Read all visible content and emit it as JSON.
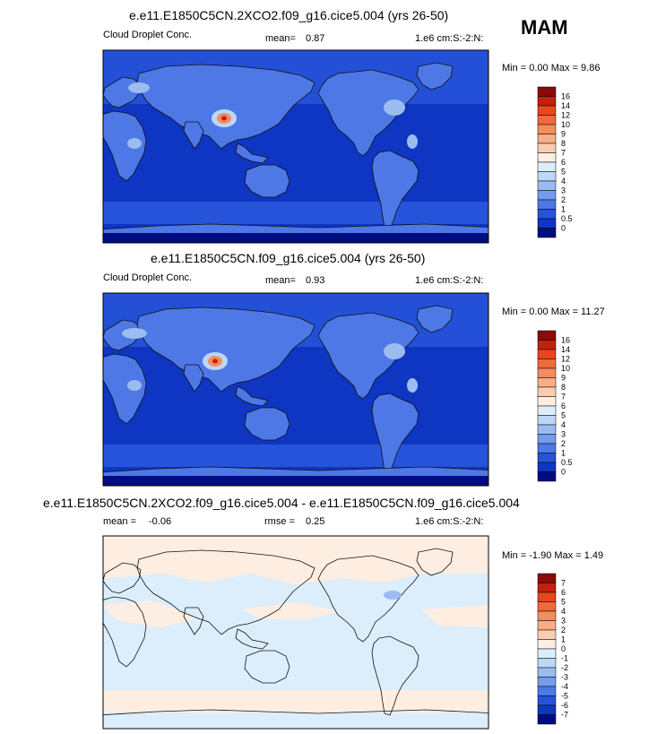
{
  "season": "MAM",
  "units": "1.e6 cm:S:-2:N:",
  "panels": [
    {
      "title": "e.e11.E1850C5CN.2XCO2.f09_g16.cice5.004 (yrs 26-50)",
      "variable": "Cloud Droplet Conc.",
      "stat_label": "mean=",
      "stat_value": "0.87",
      "minmax": "Min =   0.00 Max =   9.86",
      "colorbar": {
        "labels": [
          "16",
          "14",
          "12",
          "10",
          "9",
          "8",
          "7",
          "6",
          "5",
          "4",
          "3",
          "2",
          "1",
          "0.5",
          "0"
        ],
        "colors": [
          "#8c0a0a",
          "#c3200f",
          "#e8461d",
          "#f06a3c",
          "#f48c5e",
          "#f8ad87",
          "#fbcdb0",
          "#feeee2",
          "#dceefc",
          "#bcd7f7",
          "#9bbcf1",
          "#759bec",
          "#4d78e6",
          "#2653d9",
          "#0e36c2",
          "#000c82"
        ]
      }
    },
    {
      "title": "e.e11.E1850C5CN.f09_g16.cice5.004 (yrs 26-50)",
      "variable": "Cloud Droplet Conc.",
      "stat_label": "mean=",
      "stat_value": "0.93",
      "minmax": "Min =   0.00 Max =  11.27",
      "colorbar": {
        "labels": [
          "16",
          "14",
          "12",
          "10",
          "9",
          "8",
          "7",
          "6",
          "5",
          "4",
          "3",
          "2",
          "1",
          "0.5",
          "0"
        ],
        "colors": [
          "#8c0a0a",
          "#c3200f",
          "#e8461d",
          "#f06a3c",
          "#f48c5e",
          "#f8ad87",
          "#fbcdb0",
          "#feeee2",
          "#dceefc",
          "#bcd7f7",
          "#9bbcf1",
          "#759bec",
          "#4d78e6",
          "#2653d9",
          "#0e36c2",
          "#000c82"
        ]
      }
    },
    {
      "title": "e.e11.E1850C5CN.2XCO2.f09_g16.cice5.004 - e.e11.E1850C5CN.f09_g16.cice5.004",
      "stat_label": "mean =",
      "stat_value": "-0.06",
      "rmse_label": "rmse =",
      "rmse_value": "0.25",
      "minmax": "Min =  -1.90 Max =   1.49",
      "colorbar": {
        "labels": [
          "7",
          "6",
          "5",
          "4",
          "3",
          "2",
          "1",
          "0",
          "-1",
          "-2",
          "-3",
          "-4",
          "-5",
          "-6",
          "-7"
        ],
        "colors": [
          "#8c0a0a",
          "#c3200f",
          "#e8461d",
          "#f06a3c",
          "#f48c5e",
          "#f8ad87",
          "#fbcdb0",
          "#feeee2",
          "#dceefc",
          "#bcd7f7",
          "#9bbcf1",
          "#759bec",
          "#4d78e6",
          "#2653d9",
          "#0e36c2",
          "#000c82"
        ]
      }
    }
  ],
  "chart_data": [
    {
      "type": "heatmap",
      "title": "e.e11.E1850C5CN.2XCO2.f09_g16.cice5.004 (yrs 26-50)",
      "mean": 0.87,
      "min": 0.0,
      "max": 9.86,
      "levels": [
        0,
        0.5,
        1,
        2,
        3,
        4,
        5,
        6,
        7,
        8,
        9,
        10,
        12,
        14,
        16
      ]
    },
    {
      "type": "heatmap",
      "title": "e.e11.E1850C5CN.f09_g16.cice5.004 (yrs 26-50)",
      "mean": 0.93,
      "min": 0.0,
      "max": 11.27,
      "levels": [
        0,
        0.5,
        1,
        2,
        3,
        4,
        5,
        6,
        7,
        8,
        9,
        10,
        12,
        14,
        16
      ]
    },
    {
      "type": "heatmap",
      "title": "e.e11.E1850C5CN.2XCO2.f09_g16.cice5.004 - e.e11.E1850C5CN.f09_g16.cice5.004",
      "mean": -0.06,
      "rmse": 0.25,
      "min": -1.9,
      "max": 1.49,
      "levels": [
        -7,
        -6,
        -5,
        -4,
        -3,
        -2,
        -1,
        0,
        1,
        2,
        3,
        4,
        5,
        6,
        7
      ]
    }
  ]
}
